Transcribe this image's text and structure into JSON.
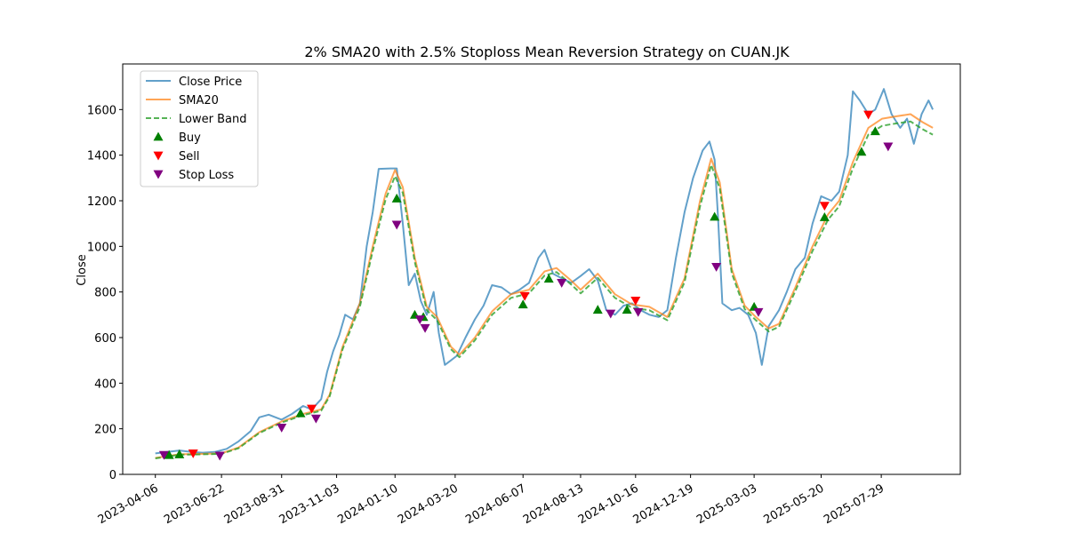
{
  "chart_data": {
    "type": "line",
    "title": "2% SMA20 with 2.5% Stoploss Mean Reversion Strategy on CUAN.JK",
    "xlabel": "",
    "ylabel": "Close",
    "ylim": [
      0,
      1800
    ],
    "xlim": [
      "2023-02-27",
      "2025-10-29"
    ],
    "y_ticks": [
      0,
      200,
      400,
      600,
      800,
      1000,
      1200,
      1400,
      1600
    ],
    "x_ticks": [
      "2023-04-06",
      "2023-06-22",
      "2023-08-31",
      "2023-11-03",
      "2024-01-10",
      "2024-03-20",
      "2024-06-07",
      "2024-08-13",
      "2024-10-16",
      "2024-12-19",
      "2025-03-03",
      "2025-05-20",
      "2025-07-29"
    ],
    "grid": false,
    "legend_position": "upper-left",
    "colors": {
      "close": "#1f77b4",
      "sma": "#ff7f0e",
      "lower": "#2ca02c",
      "buy": "#008000",
      "sell": "#ff0000",
      "stop": "#800080"
    },
    "legend": [
      "Close Price",
      "SMA20",
      "Lower Band",
      "Buy",
      "Sell",
      "Stop Loss"
    ],
    "series": [
      {
        "name": "Close Price",
        "points": [
          [
            "2023-04-06",
            92
          ],
          [
            "2023-04-20",
            98
          ],
          [
            "2023-05-04",
            105
          ],
          [
            "2023-05-18",
            98
          ],
          [
            "2023-05-31",
            95
          ],
          [
            "2023-06-14",
            98
          ],
          [
            "2023-06-28",
            112
          ],
          [
            "2023-07-12",
            145
          ],
          [
            "2023-07-26",
            190
          ],
          [
            "2023-08-05",
            250
          ],
          [
            "2023-08-16",
            262
          ],
          [
            "2023-08-31",
            240
          ],
          [
            "2023-09-12",
            265
          ],
          [
            "2023-09-25",
            300
          ],
          [
            "2023-10-05",
            285
          ],
          [
            "2023-10-16",
            330
          ],
          [
            "2023-10-23",
            450
          ],
          [
            "2023-10-30",
            540
          ],
          [
            "2023-11-06",
            610
          ],
          [
            "2023-11-13",
            700
          ],
          [
            "2023-11-22",
            680
          ],
          [
            "2023-11-30",
            750
          ],
          [
            "2023-12-08",
            1000
          ],
          [
            "2023-12-15",
            1150
          ],
          [
            "2023-12-22",
            1340
          ],
          [
            "2024-01-05",
            1342
          ],
          [
            "2024-01-12",
            1342
          ],
          [
            "2024-01-19",
            1100
          ],
          [
            "2024-01-26",
            830
          ],
          [
            "2024-02-02",
            880
          ],
          [
            "2024-02-09",
            760
          ],
          [
            "2024-02-16",
            700
          ],
          [
            "2024-02-24",
            800
          ],
          [
            "2024-03-01",
            620
          ],
          [
            "2024-03-08",
            480
          ],
          [
            "2024-03-15",
            500
          ],
          [
            "2024-03-22",
            520
          ],
          [
            "2024-04-01",
            600
          ],
          [
            "2024-04-12",
            680
          ],
          [
            "2024-04-22",
            740
          ],
          [
            "2024-05-02",
            830
          ],
          [
            "2024-05-13",
            820
          ],
          [
            "2024-05-24",
            790
          ],
          [
            "2024-06-03",
            810
          ],
          [
            "2024-06-14",
            840
          ],
          [
            "2024-06-25",
            950
          ],
          [
            "2024-07-02",
            985
          ],
          [
            "2024-07-12",
            880
          ],
          [
            "2024-07-22",
            860
          ],
          [
            "2024-08-02",
            840
          ],
          [
            "2024-08-13",
            870
          ],
          [
            "2024-08-23",
            900
          ],
          [
            "2024-09-02",
            850
          ],
          [
            "2024-09-12",
            720
          ],
          [
            "2024-09-22",
            700
          ],
          [
            "2024-10-02",
            740
          ],
          [
            "2024-10-12",
            750
          ],
          [
            "2024-10-22",
            720
          ],
          [
            "2024-11-01",
            700
          ],
          [
            "2024-11-12",
            690
          ],
          [
            "2024-11-22",
            720
          ],
          [
            "2024-12-02",
            950
          ],
          [
            "2024-12-12",
            1150
          ],
          [
            "2024-12-22",
            1300
          ],
          [
            "2025-01-02",
            1420
          ],
          [
            "2025-01-10",
            1460
          ],
          [
            "2025-01-16",
            1380
          ],
          [
            "2025-01-20",
            1130
          ],
          [
            "2025-01-25",
            750
          ],
          [
            "2025-02-05",
            720
          ],
          [
            "2025-02-14",
            730
          ],
          [
            "2025-02-24",
            700
          ],
          [
            "2025-03-05",
            620
          ],
          [
            "2025-03-12",
            480
          ],
          [
            "2025-03-20",
            650
          ],
          [
            "2025-04-01",
            720
          ],
          [
            "2025-04-10",
            800
          ],
          [
            "2025-04-20",
            900
          ],
          [
            "2025-05-01",
            950
          ],
          [
            "2025-05-10",
            1100
          ],
          [
            "2025-05-20",
            1220
          ],
          [
            "2025-06-01",
            1200
          ],
          [
            "2025-06-10",
            1240
          ],
          [
            "2025-06-20",
            1400
          ],
          [
            "2025-06-26",
            1680
          ],
          [
            "2025-07-04",
            1640
          ],
          [
            "2025-07-14",
            1580
          ],
          [
            "2025-07-22",
            1600
          ],
          [
            "2025-08-01",
            1690
          ],
          [
            "2025-08-10",
            1580
          ],
          [
            "2025-08-20",
            1520
          ],
          [
            "2025-08-28",
            1560
          ],
          [
            "2025-09-05",
            1450
          ],
          [
            "2025-09-14",
            1580
          ],
          [
            "2025-09-22",
            1640
          ],
          [
            "2025-09-27",
            1600
          ]
        ]
      },
      {
        "name": "SMA20",
        "points": [
          [
            "2023-04-06",
            72
          ],
          [
            "2023-05-04",
            88
          ],
          [
            "2023-06-01",
            90
          ],
          [
            "2023-06-22",
            92
          ],
          [
            "2023-07-12",
            118
          ],
          [
            "2023-08-05",
            185
          ],
          [
            "2023-08-31",
            232
          ],
          [
            "2023-09-25",
            265
          ],
          [
            "2023-10-16",
            285
          ],
          [
            "2023-10-26",
            350
          ],
          [
            "2023-11-10",
            560
          ],
          [
            "2023-11-30",
            750
          ],
          [
            "2023-12-15",
            1000
          ],
          [
            "2023-12-30",
            1230
          ],
          [
            "2024-01-10",
            1335
          ],
          [
            "2024-01-19",
            1260
          ],
          [
            "2024-02-02",
            950
          ],
          [
            "2024-02-16",
            735
          ],
          [
            "2024-02-28",
            690
          ],
          [
            "2024-03-15",
            560
          ],
          [
            "2024-03-25",
            525
          ],
          [
            "2024-04-12",
            600
          ],
          [
            "2024-05-02",
            715
          ],
          [
            "2024-05-24",
            790
          ],
          [
            "2024-06-14",
            810
          ],
          [
            "2024-07-02",
            890
          ],
          [
            "2024-07-16",
            905
          ],
          [
            "2024-08-02",
            850
          ],
          [
            "2024-08-13",
            810
          ],
          [
            "2024-09-02",
            880
          ],
          [
            "2024-09-22",
            790
          ],
          [
            "2024-10-12",
            745
          ],
          [
            "2024-11-01",
            735
          ],
          [
            "2024-11-22",
            690
          ],
          [
            "2024-12-12",
            860
          ],
          [
            "2024-12-30",
            1200
          ],
          [
            "2025-01-12",
            1385
          ],
          [
            "2025-01-22",
            1280
          ],
          [
            "2025-02-05",
            900
          ],
          [
            "2025-02-20",
            740
          ],
          [
            "2025-03-05",
            690
          ],
          [
            "2025-03-20",
            640
          ],
          [
            "2025-04-01",
            660
          ],
          [
            "2025-04-20",
            820
          ],
          [
            "2025-05-10",
            1000
          ],
          [
            "2025-05-28",
            1140
          ],
          [
            "2025-06-10",
            1200
          ],
          [
            "2025-06-26",
            1370
          ],
          [
            "2025-07-14",
            1520
          ],
          [
            "2025-07-30",
            1560
          ],
          [
            "2025-08-15",
            1570
          ],
          [
            "2025-09-01",
            1580
          ],
          [
            "2025-09-15",
            1545
          ],
          [
            "2025-09-27",
            1520
          ]
        ]
      },
      {
        "name": "Lower Band",
        "points": [
          [
            "2023-04-06",
            70
          ],
          [
            "2023-05-04",
            86
          ],
          [
            "2023-06-01",
            88
          ],
          [
            "2023-06-22",
            90
          ],
          [
            "2023-07-12",
            115
          ],
          [
            "2023-08-05",
            181
          ],
          [
            "2023-08-31",
            227
          ],
          [
            "2023-09-25",
            260
          ],
          [
            "2023-10-16",
            279
          ],
          [
            "2023-10-26",
            343
          ],
          [
            "2023-11-10",
            549
          ],
          [
            "2023-11-30",
            735
          ],
          [
            "2023-12-15",
            980
          ],
          [
            "2023-12-30",
            1205
          ],
          [
            "2024-01-10",
            1308
          ],
          [
            "2024-01-19",
            1235
          ],
          [
            "2024-02-02",
            931
          ],
          [
            "2024-02-16",
            720
          ],
          [
            "2024-02-28",
            676
          ],
          [
            "2024-03-15",
            549
          ],
          [
            "2024-03-25",
            514
          ],
          [
            "2024-04-12",
            588
          ],
          [
            "2024-05-02",
            700
          ],
          [
            "2024-05-24",
            774
          ],
          [
            "2024-06-14",
            794
          ],
          [
            "2024-07-02",
            872
          ],
          [
            "2024-07-16",
            887
          ],
          [
            "2024-08-02",
            833
          ],
          [
            "2024-08-13",
            794
          ],
          [
            "2024-09-02",
            862
          ],
          [
            "2024-09-22",
            774
          ],
          [
            "2024-10-12",
            730
          ],
          [
            "2024-11-01",
            720
          ],
          [
            "2024-11-22",
            676
          ],
          [
            "2024-12-12",
            843
          ],
          [
            "2024-12-30",
            1176
          ],
          [
            "2025-01-12",
            1357
          ],
          [
            "2025-01-22",
            1254
          ],
          [
            "2025-02-05",
            882
          ],
          [
            "2025-02-20",
            725
          ],
          [
            "2025-03-05",
            676
          ],
          [
            "2025-03-20",
            627
          ],
          [
            "2025-04-01",
            647
          ],
          [
            "2025-04-20",
            804
          ],
          [
            "2025-05-10",
            980
          ],
          [
            "2025-05-28",
            1117
          ],
          [
            "2025-06-10",
            1176
          ],
          [
            "2025-06-26",
            1343
          ],
          [
            "2025-07-14",
            1490
          ],
          [
            "2025-07-30",
            1529
          ],
          [
            "2025-08-15",
            1539
          ],
          [
            "2025-09-01",
            1548
          ],
          [
            "2025-09-15",
            1514
          ],
          [
            "2025-09-27",
            1490
          ]
        ]
      }
    ],
    "buy_signals": [
      [
        "2023-04-22",
        85
      ],
      [
        "2023-05-04",
        88
      ],
      [
        "2023-09-22",
        268
      ],
      [
        "2024-01-12",
        1210
      ],
      [
        "2024-02-02",
        700
      ],
      [
        "2024-02-12",
        690
      ],
      [
        "2024-06-07",
        745
      ],
      [
        "2024-07-07",
        858
      ],
      [
        "2024-09-02",
        722
      ],
      [
        "2024-10-06",
        722
      ],
      [
        "2025-01-16",
        1130
      ],
      [
        "2025-03-03",
        735
      ],
      [
        "2025-05-24",
        1128
      ],
      [
        "2025-07-06",
        1415
      ],
      [
        "2025-07-22",
        1505
      ]
    ],
    "sell_signals": [
      [
        "2023-05-20",
        92
      ],
      [
        "2023-10-05",
        288
      ],
      [
        "2024-06-09",
        782
      ],
      [
        "2024-10-16",
        762
      ],
      [
        "2025-05-24",
        1178
      ],
      [
        "2025-07-14",
        1578
      ]
    ],
    "stop_loss_signals": [
      [
        "2023-04-16",
        85
      ],
      [
        "2023-06-20",
        82
      ],
      [
        "2023-08-31",
        205
      ],
      [
        "2023-10-10",
        245
      ],
      [
        "2024-01-12",
        1095
      ],
      [
        "2024-02-08",
        680
      ],
      [
        "2024-02-14",
        642
      ],
      [
        "2024-07-22",
        840
      ],
      [
        "2024-09-17",
        705
      ],
      [
        "2024-10-19",
        712
      ],
      [
        "2025-01-18",
        910
      ],
      [
        "2025-03-08",
        712
      ],
      [
        "2025-08-06",
        1438
      ]
    ]
  }
}
